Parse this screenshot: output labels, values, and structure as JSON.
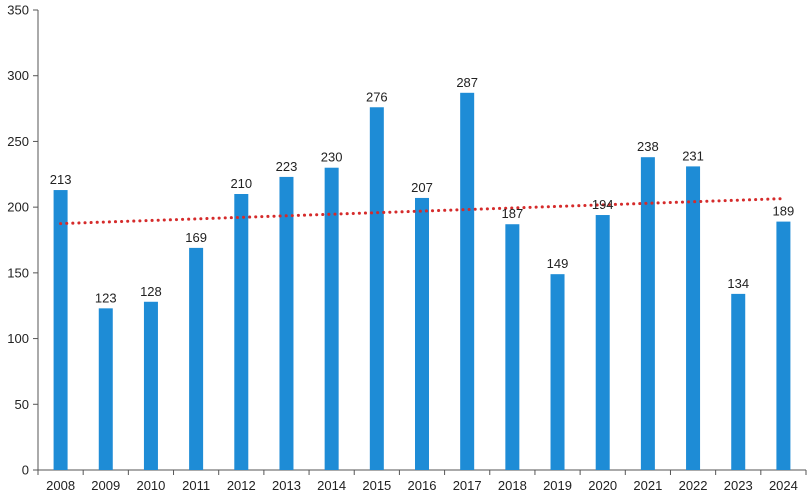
{
  "chart_data": {
    "type": "bar",
    "categories": [
      "2008",
      "2009",
      "2010",
      "2011",
      "2012",
      "2013",
      "2014",
      "2015",
      "2016",
      "2017",
      "2018",
      "2019",
      "2020",
      "2021",
      "2022",
      "2023",
      "2024"
    ],
    "values": [
      213,
      123,
      128,
      169,
      210,
      223,
      230,
      276,
      207,
      287,
      187,
      149,
      194,
      238,
      231,
      134,
      189
    ],
    "data_labels": [
      "213",
      "123",
      "128",
      "169",
      "210",
      "223",
      "230",
      "276",
      "207",
      "287",
      "187",
      "149",
      "194",
      "238",
      "231",
      "134",
      "189"
    ],
    "y_ticks": [
      0,
      50,
      100,
      150,
      200,
      250,
      300,
      350
    ],
    "y_tick_labels": [
      "0",
      "50",
      "100",
      "150",
      "200",
      "250",
      "300",
      "350"
    ],
    "ylim": [
      0,
      350
    ],
    "title": "",
    "xlabel": "",
    "ylabel": "",
    "grid": false,
    "legend": "none",
    "trendline": {
      "type": "linear",
      "style": "dotted",
      "start": 187.5,
      "end": 206.5
    },
    "colors": {
      "bar": "#1e8cd6",
      "trendline": "#d52b2b",
      "axis": "#555555"
    }
  }
}
